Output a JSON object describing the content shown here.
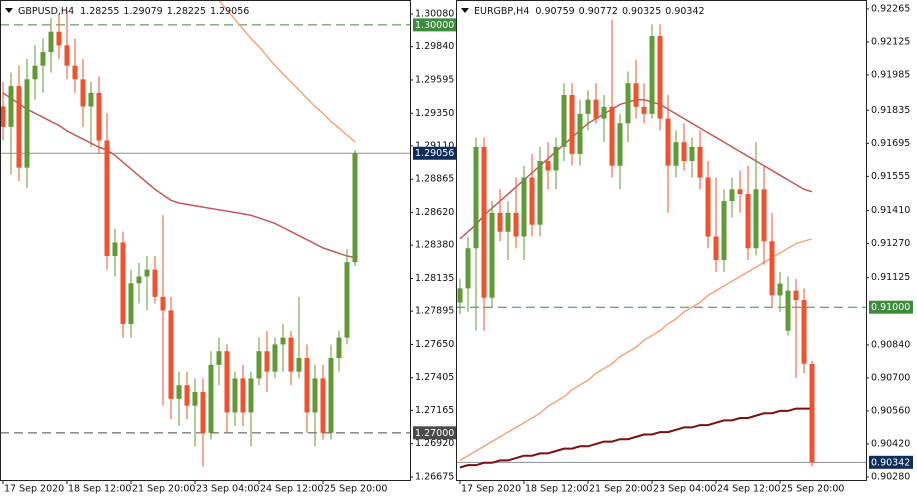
{
  "chart_data": [
    {
      "type": "candlestick",
      "title": "GBPUSD,H4",
      "up_color": "#5f9a34",
      "down_color": "#f0522e",
      "ylim": [
        1.26653,
        1.30183
      ],
      "yticks": [
        {
          "value": 1.3008,
          "label": "1.30080"
        },
        {
          "value": 1.2984,
          "label": "1.29840"
        },
        {
          "value": 1.29595,
          "label": "1.29595"
        },
        {
          "value": 1.2935,
          "label": "1.29350"
        },
        {
          "value": 1.2911,
          "label": "1.29110"
        },
        {
          "value": 1.28865,
          "label": "1.28865"
        },
        {
          "value": 1.2862,
          "label": "1.28620"
        },
        {
          "value": 1.2838,
          "label": "1.28380"
        },
        {
          "value": 1.28135,
          "label": "1.28135"
        },
        {
          "value": 1.27895,
          "label": "1.27895"
        },
        {
          "value": 1.2765,
          "label": "1.27650"
        },
        {
          "value": 1.27405,
          "label": "1.27405"
        },
        {
          "value": 1.27165,
          "label": "1.27165"
        },
        {
          "value": 1.2692,
          "label": "1.26920"
        },
        {
          "value": 1.26675,
          "label": "1.26675"
        }
      ],
      "xticks": [
        {
          "value": 0,
          "label": "17 Sep 2020"
        },
        {
          "value": 8,
          "label": "18 Sep 12:00"
        },
        {
          "value": 16,
          "label": "21 Sep 20:00"
        },
        {
          "value": 24,
          "label": "23 Sep 04:00"
        },
        {
          "value": 32,
          "label": "24 Sep 12:00"
        },
        {
          "value": 40,
          "label": "25 Sep 20:00"
        }
      ],
      "open": [
        1.294,
        1.2925,
        1.2955,
        1.2895,
        1.296,
        1.297,
        1.298,
        1.2995,
        1.2985,
        1.297,
        1.296,
        1.294,
        1.295,
        1.2915,
        1.283,
        1.284,
        1.278,
        1.281,
        1.2815,
        1.282,
        1.28,
        1.279,
        1.2725,
        1.2735,
        1.272,
        1.273,
        1.27,
        1.275,
        1.276,
        1.2715,
        1.274,
        1.2715,
        1.274,
        1.276,
        1.2745,
        1.2765,
        1.277,
        1.2745,
        1.2755,
        1.2715,
        1.274,
        1.27,
        1.2755,
        1.277,
        1.28255
      ],
      "high": [
        1.2958,
        1.2965,
        1.297,
        1.2975,
        1.2985,
        1.299,
        1.3005,
        1.3008,
        1.301,
        1.299,
        1.2975,
        1.2958,
        1.2962,
        1.2935,
        1.285,
        1.2848,
        1.282,
        1.2825,
        1.283,
        1.283,
        1.286,
        1.28,
        1.2745,
        1.2745,
        1.274,
        1.274,
        1.276,
        1.277,
        1.2765,
        1.2745,
        1.275,
        1.2745,
        1.277,
        1.2775,
        1.277,
        1.278,
        1.2775,
        1.28,
        1.2765,
        1.275,
        1.275,
        1.2765,
        1.2775,
        1.2835,
        1.29079
      ],
      "low": [
        1.2915,
        1.289,
        1.2885,
        1.288,
        1.2945,
        1.295,
        1.2965,
        1.2975,
        1.296,
        1.295,
        1.2925,
        1.291,
        1.2905,
        1.282,
        1.2815,
        1.277,
        1.277,
        1.2795,
        1.279,
        1.2795,
        1.272,
        1.271,
        1.2705,
        1.271,
        1.269,
        1.2675,
        1.2695,
        1.2735,
        1.27,
        1.2705,
        1.2705,
        1.269,
        1.2735,
        1.273,
        1.274,
        1.2745,
        1.2735,
        1.274,
        1.27,
        1.269,
        1.2695,
        1.2695,
        1.2745,
        1.2765,
        1.28225
      ],
      "close": [
        1.2925,
        1.2955,
        1.2895,
        1.296,
        1.297,
        1.298,
        1.2995,
        1.2985,
        1.297,
        1.296,
        1.294,
        1.295,
        1.2915,
        1.283,
        1.284,
        1.278,
        1.281,
        1.2815,
        1.282,
        1.28,
        1.279,
        1.2725,
        1.2735,
        1.272,
        1.273,
        1.27,
        1.275,
        1.276,
        1.2715,
        1.274,
        1.2715,
        1.274,
        1.276,
        1.2745,
        1.2765,
        1.277,
        1.2745,
        1.2755,
        1.2715,
        1.274,
        1.27,
        1.2755,
        1.277,
        1.28255,
        1.29056
      ],
      "lines": [
        {
          "color": "#c4585a",
          "values": [
            1.295,
            1.2946,
            1.2942,
            1.2938,
            1.2935,
            1.2932,
            1.2929,
            1.2926,
            1.2922,
            1.2919,
            1.2916,
            1.2913,
            1.291,
            1.2908,
            1.2904,
            1.2899,
            1.2894,
            1.2889,
            1.2884,
            1.2879,
            1.2875,
            1.2871,
            1.2869,
            1.2868,
            1.2867,
            1.2866,
            1.2865,
            1.2864,
            1.2863,
            1.2862,
            1.2861,
            1.286,
            1.2858,
            1.2856,
            1.2854,
            1.2851,
            1.2848,
            1.2845,
            1.2842,
            1.2839,
            1.2836,
            1.2834,
            1.2832,
            1.283,
            1.2829
          ]
        },
        {
          "color": "#f5a57a",
          "values": [
            null,
            null,
            null,
            null,
            null,
            null,
            null,
            null,
            null,
            null,
            null,
            null,
            null,
            null,
            null,
            null,
            null,
            null,
            null,
            null,
            null,
            null,
            null,
            null,
            null,
            null,
            null,
            1.3018,
            1.3011,
            1.3004,
            1.2997,
            1.299,
            1.2984,
            1.2977,
            1.297,
            1.2964,
            1.2958,
            1.2952,
            1.2946,
            1.294,
            1.2935,
            1.2929,
            1.2924,
            1.2919,
            1.2914
          ]
        }
      ],
      "levels": [
        {
          "value": 1.3,
          "label": "1.30000",
          "color": "#3c8c3c"
        },
        {
          "value": 1.27,
          "label": "1.27000",
          "color": "#4a4a4a"
        }
      ],
      "price_color": "#0e2d5c"
    },
    {
      "type": "candlestick",
      "title": "EURGBP,H4",
      "up_color": "#5f9a34",
      "down_color": "#f0522e",
      "ylim": [
        0.90267,
        0.92303
      ],
      "yticks": [
        {
          "value": 0.92265,
          "label": "0.92265"
        },
        {
          "value": 0.92125,
          "label": "0.92125"
        },
        {
          "value": 0.91985,
          "label": "0.91985"
        },
        {
          "value": 0.91835,
          "label": "0.91835"
        },
        {
          "value": 0.91695,
          "label": "0.91695"
        },
        {
          "value": 0.91555,
          "label": "0.91555"
        },
        {
          "value": 0.9141,
          "label": "0.91410"
        },
        {
          "value": 0.9127,
          "label": "0.91270"
        },
        {
          "value": 0.91125,
          "label": "0.91125"
        },
        {
          "value": 0.9084,
          "label": "0.90840"
        },
        {
          "value": 0.907,
          "label": "0.90700"
        },
        {
          "value": 0.9056,
          "label": "0.90560"
        },
        {
          "value": 0.9042,
          "label": "0.90420"
        },
        {
          "value": 0.9028,
          "label": "0.90280"
        }
      ],
      "xticks": [
        {
          "value": 0,
          "label": "17 Sep 2020"
        },
        {
          "value": 8,
          "label": "18 Sep 12:00"
        },
        {
          "value": 16,
          "label": "21 Sep 20:00"
        },
        {
          "value": 24,
          "label": "23 Sep 04:00"
        },
        {
          "value": 32,
          "label": "24 Sep 12:00"
        },
        {
          "value": 40,
          "label": "25 Sep 20:00"
        }
      ],
      "open": [
        0.9102,
        0.9108,
        0.9125,
        0.9168,
        0.9104,
        0.914,
        0.9132,
        0.914,
        0.913,
        0.9155,
        0.9135,
        0.9162,
        0.9158,
        0.9168,
        0.919,
        0.9165,
        0.9182,
        0.9188,
        0.918,
        0.9185,
        0.916,
        0.9178,
        0.9195,
        0.9185,
        0.9182,
        0.9215,
        0.918,
        0.916,
        0.917,
        0.9162,
        0.9168,
        0.9155,
        0.913,
        0.912,
        0.9145,
        0.915,
        0.9148,
        0.9125,
        0.915,
        0.9128,
        0.9105,
        0.909,
        0.9107,
        0.9103,
        0.90759
      ],
      "high": [
        0.9112,
        0.913,
        0.9172,
        0.9172,
        0.9145,
        0.915,
        0.9145,
        0.9155,
        0.916,
        0.9165,
        0.9168,
        0.917,
        0.9172,
        0.9195,
        0.9195,
        0.9188,
        0.9192,
        0.9195,
        0.919,
        0.9222,
        0.9182,
        0.92,
        0.9205,
        0.9195,
        0.922,
        0.922,
        0.919,
        0.9175,
        0.9178,
        0.9172,
        0.9175,
        0.9162,
        0.9155,
        0.915,
        0.9155,
        0.9158,
        0.916,
        0.917,
        0.916,
        0.914,
        0.9115,
        0.9113,
        0.9112,
        0.9108,
        0.90772
      ],
      "low": [
        0.9097,
        0.9098,
        0.909,
        0.909,
        0.91,
        0.9128,
        0.912,
        0.9125,
        0.912,
        0.913,
        0.913,
        0.915,
        0.915,
        0.9162,
        0.916,
        0.916,
        0.9175,
        0.9178,
        0.917,
        0.9155,
        0.915,
        0.917,
        0.918,
        0.9178,
        0.918,
        0.9175,
        0.914,
        0.9155,
        0.9158,
        0.9155,
        0.915,
        0.9125,
        0.9115,
        0.9115,
        0.9138,
        0.914,
        0.912,
        0.9122,
        0.9118,
        0.91,
        0.9098,
        0.9088,
        0.907,
        0.9072,
        0.90325
      ],
      "close": [
        0.9108,
        0.9125,
        0.9168,
        0.9104,
        0.914,
        0.9132,
        0.914,
        0.913,
        0.9155,
        0.9135,
        0.9162,
        0.9158,
        0.9168,
        0.919,
        0.9165,
        0.9182,
        0.9188,
        0.918,
        0.9185,
        0.916,
        0.9178,
        0.9195,
        0.9185,
        0.9182,
        0.9215,
        0.918,
        0.916,
        0.917,
        0.9162,
        0.9168,
        0.9155,
        0.913,
        0.912,
        0.9145,
        0.915,
        0.9148,
        0.9125,
        0.915,
        0.9128,
        0.9105,
        0.911,
        0.9107,
        0.9103,
        0.9076,
        0.90342
      ],
      "lines": [
        {
          "color": "#c4585a",
          "values": [
            0.9129,
            0.9132,
            0.9135,
            0.9139,
            0.9142,
            0.9145,
            0.9148,
            0.9151,
            0.9154,
            0.9157,
            0.916,
            0.9163,
            0.9166,
            0.9169,
            0.9172,
            0.9175,
            0.9178,
            0.918,
            0.9182,
            0.9184,
            0.9186,
            0.9187,
            0.9188,
            0.9188,
            0.9187,
            0.9186,
            0.9184,
            0.9182,
            0.918,
            0.9178,
            0.9176,
            0.9174,
            0.9172,
            0.917,
            0.9168,
            0.9166,
            0.9164,
            0.9162,
            0.916,
            0.9158,
            0.9156,
            0.9154,
            0.9152,
            0.915,
            0.9149
          ]
        },
        {
          "color": "#f5a57a",
          "values": [
            0.9035,
            0.9037,
            0.9039,
            0.9041,
            0.9043,
            0.9045,
            0.9047,
            0.9049,
            0.9051,
            0.9053,
            0.9055,
            0.9058,
            0.906,
            0.9062,
            0.9065,
            0.9067,
            0.9069,
            0.9072,
            0.9074,
            0.9076,
            0.9079,
            0.9081,
            0.9083,
            0.9086,
            0.9088,
            0.909,
            0.9093,
            0.9095,
            0.9098,
            0.91,
            0.9102,
            0.9105,
            0.9107,
            0.9109,
            0.9111,
            0.9113,
            0.9115,
            0.9117,
            0.9119,
            0.9121,
            0.9123,
            0.9125,
            0.9127,
            0.9128,
            0.9129
          ]
        },
        {
          "color": "#7a0f12",
          "values": [
            0.9032,
            0.9033,
            0.9033,
            0.9034,
            0.9034,
            0.9035,
            0.9035,
            0.9036,
            0.9037,
            0.9037,
            0.9038,
            0.9038,
            0.9039,
            0.904,
            0.904,
            0.9041,
            0.9041,
            0.9042,
            0.9043,
            0.9043,
            0.9044,
            0.9044,
            0.9045,
            0.9046,
            0.9046,
            0.9047,
            0.9047,
            0.9048,
            0.9049,
            0.9049,
            0.905,
            0.905,
            0.9051,
            0.9052,
            0.9052,
            0.9053,
            0.9053,
            0.9054,
            0.9055,
            0.9055,
            0.9056,
            0.9056,
            0.9057,
            0.9057,
            0.9057
          ]
        }
      ],
      "levels": [
        {
          "value": 0.91,
          "label": "0.91000",
          "color": "#3c8c3c"
        }
      ],
      "price_color": "#0e2d5c"
    }
  ]
}
